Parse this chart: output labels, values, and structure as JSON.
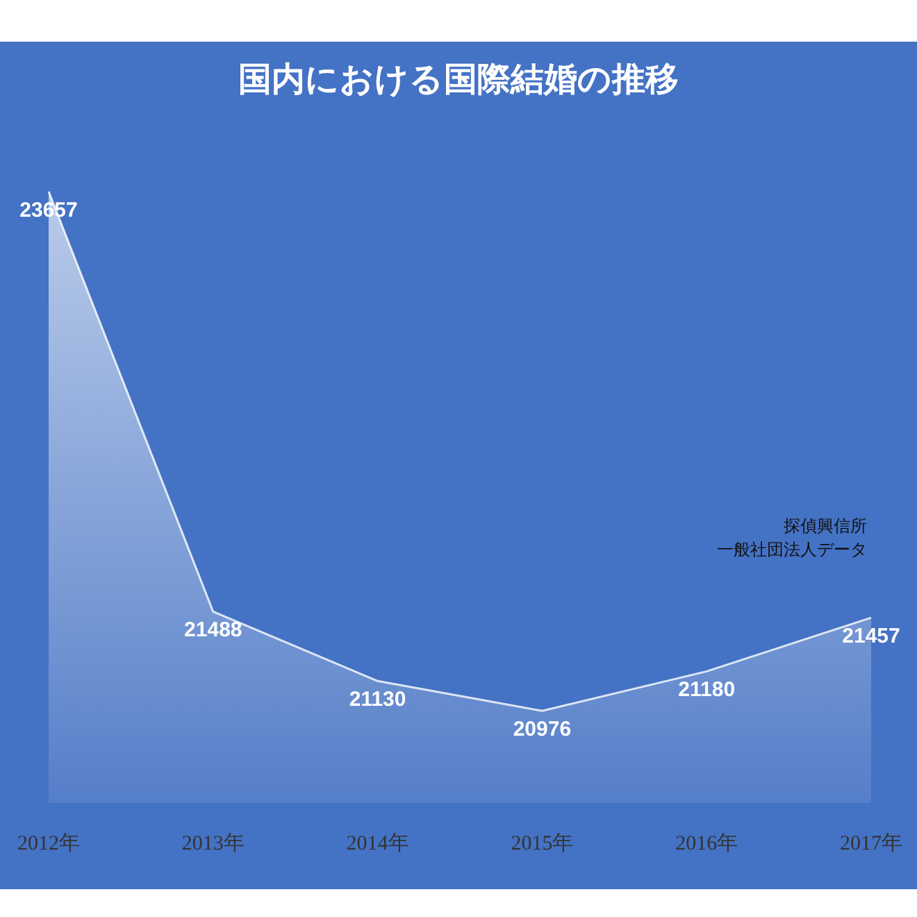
{
  "chart_data": {
    "type": "area",
    "title": "国内における国際結婚の推移",
    "categories": [
      "2012年",
      "2013年",
      "2014年",
      "2015年",
      "2016年",
      "2017年"
    ],
    "series": [
      {
        "color": "#ffffff",
        "values": [
          23657,
          21488,
          21130,
          20976,
          21180,
          21457
        ]
      }
    ],
    "tick_labels": "x",
    "data_labels": true,
    "marker": "none",
    "annotations": [
      "探偵興信所",
      "一般社団法人データ"
    ]
  }
}
